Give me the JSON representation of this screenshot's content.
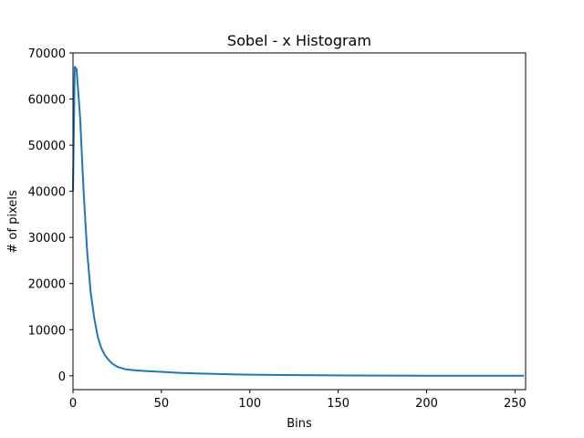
{
  "chart_data": {
    "type": "line",
    "title": "Sobel - x Histogram",
    "xlabel": "Bins",
    "ylabel": "# of pixels",
    "xlim": [
      0,
      256
    ],
    "ylim": [
      -3000,
      70000
    ],
    "xticks": [
      0,
      50,
      100,
      150,
      200,
      250
    ],
    "yticks": [
      0,
      10000,
      20000,
      30000,
      40000,
      50000,
      60000,
      70000
    ],
    "grid": false,
    "line_color": "#1f77b4",
    "series": [
      {
        "x": [
          0,
          1,
          2,
          4,
          6,
          8,
          10,
          12,
          14,
          16,
          18,
          20,
          22,
          24,
          26,
          28,
          30,
          35,
          40,
          45,
          50,
          60,
          70,
          80,
          90,
          100,
          120,
          140,
          160,
          180,
          200,
          220,
          240,
          255
        ],
        "values": [
          40000,
          67000,
          66500,
          56000,
          40000,
          27000,
          18000,
          12500,
          8500,
          6000,
          4500,
          3500,
          2700,
          2200,
          1800,
          1600,
          1400,
          1200,
          1050,
          950,
          850,
          650,
          500,
          400,
          320,
          250,
          160,
          110,
          70,
          45,
          30,
          20,
          15,
          10
        ]
      }
    ]
  }
}
